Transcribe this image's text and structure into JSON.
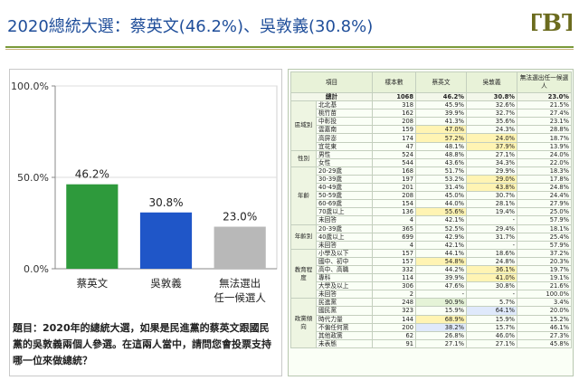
{
  "page": {
    "title": "2020總統大選：蔡英文(46.2%)、吳敦義(30.8%)",
    "logo_text": "TBT"
  },
  "colors": {
    "green": "#2e9a3c",
    "blue": "#1f56c8",
    "grey": "#b8b8b8",
    "title": "#1f4e9a"
  },
  "chart_data": {
    "type": "bar",
    "categories": [
      "蔡英文",
      "吳敦義",
      "無法選出\n任一候選人"
    ],
    "values": [
      46.2,
      30.8,
      23.0
    ],
    "value_labels": [
      "46.2%",
      "30.8%",
      "23.0%"
    ],
    "yticks": [
      "0.0%",
      "50.0%",
      "100.0%"
    ],
    "ylim": [
      0,
      100
    ],
    "colors": [
      "#2e9a3c",
      "#1f56c8",
      "#b8b8b8"
    ]
  },
  "note": "題目：2020年的總統大選，如果是民進黨的蔡英文跟國民黨的吳敦義兩個人參選。在這兩人當中，請問您會投票支持哪一位來做總統？",
  "table": {
    "headers": [
      "項目",
      "樣本數",
      "蔡英文",
      "吳敦義",
      "無法選出任一候選人"
    ],
    "total": {
      "label": "總計",
      "n": "1068",
      "a": "46.2%",
      "b": "30.8%",
      "c": "23.0%"
    },
    "groups": [
      {
        "name": "區域別",
        "rows": [
          {
            "label": "北北基",
            "n": "318",
            "a": "45.9%",
            "b": "32.6%",
            "c": "21.5%"
          },
          {
            "label": "桃竹苗",
            "n": "162",
            "a": "39.9%",
            "b": "32.7%",
            "c": "27.4%"
          },
          {
            "label": "中彰投",
            "n": "208",
            "a": "41.3%",
            "b": "35.6%",
            "c": "23.1%"
          },
          {
            "label": "雲嘉南",
            "n": "159",
            "a": "47.0%",
            "b": "24.3%",
            "c": "28.8%",
            "hl_a": "yellow"
          },
          {
            "label": "高屏澎",
            "n": "174",
            "a": "57.2%",
            "b": "24.0%",
            "c": "18.7%",
            "hl_a": "yellow",
            "hl_b": "yellow"
          },
          {
            "label": "宜花東",
            "n": "47",
            "a": "48.1%",
            "b": "37.9%",
            "c": "13.9%",
            "hl_b": "yellow"
          }
        ]
      },
      {
        "name": "性別",
        "rows": [
          {
            "label": "男性",
            "n": "524",
            "a": "48.8%",
            "b": "27.1%",
            "c": "24.0%"
          },
          {
            "label": "女性",
            "n": "544",
            "a": "43.6%",
            "b": "34.3%",
            "c": "22.0%"
          }
        ]
      },
      {
        "name": "年齡",
        "rows": [
          {
            "label": "20-29歲",
            "n": "168",
            "a": "51.7%",
            "b": "29.9%",
            "c": "18.3%"
          },
          {
            "label": "30-39歲",
            "n": "197",
            "a": "53.2%",
            "b": "29.0%",
            "c": "17.8%",
            "hl_b": "yellow"
          },
          {
            "label": "40-49歲",
            "n": "201",
            "a": "31.4%",
            "b": "43.8%",
            "c": "24.8%",
            "hl_b": "yellow"
          },
          {
            "label": "50-59歲",
            "n": "208",
            "a": "45.0%",
            "b": "30.7%",
            "c": "24.4%"
          },
          {
            "label": "60-69歲",
            "n": "154",
            "a": "44.0%",
            "b": "28.1%",
            "c": "27.9%"
          },
          {
            "label": "70歲以上",
            "n": "136",
            "a": "55.6%",
            "b": "19.4%",
            "c": "25.0%",
            "hl_a": "yellow"
          },
          {
            "label": "未回答",
            "n": "4",
            "a": "42.1%",
            "b": "-",
            "c": "57.9%"
          }
        ]
      },
      {
        "name": "年齡別",
        "rows": [
          {
            "label": "20-39歲",
            "n": "365",
            "a": "52.5%",
            "b": "29.4%",
            "c": "18.1%"
          },
          {
            "label": "40歲以上",
            "n": "699",
            "a": "42.9%",
            "b": "31.7%",
            "c": "25.4%"
          },
          {
            "label": "未回答",
            "n": "4",
            "a": "42.1%",
            "b": "-",
            "c": "57.9%"
          }
        ]
      },
      {
        "name": "教育程度",
        "rows": [
          {
            "label": "小學及以下",
            "n": "157",
            "a": "44.1%",
            "b": "18.6%",
            "c": "37.2%"
          },
          {
            "label": "國中、初中",
            "n": "157",
            "a": "54.8%",
            "b": "24.8%",
            "c": "20.3%",
            "hl_a": "yellow"
          },
          {
            "label": "高中、高職",
            "n": "332",
            "a": "44.2%",
            "b": "36.1%",
            "c": "19.7%",
            "hl_b": "yellow"
          },
          {
            "label": "專科",
            "n": "114",
            "a": "39.9%",
            "b": "41.0%",
            "c": "19.1%",
            "hl_b": "yellow"
          },
          {
            "label": "大學及以上",
            "n": "306",
            "a": "47.6%",
            "b": "30.8%",
            "c": "21.6%"
          },
          {
            "label": "未回答",
            "n": "2",
            "a": "-",
            "b": "-",
            "c": "100.0%"
          }
        ]
      },
      {
        "name": "政黨傾向",
        "rows": [
          {
            "label": "民進黨",
            "n": "248",
            "a": "90.9%",
            "b": "5.7%",
            "c": "3.4%",
            "hl_a": "green"
          },
          {
            "label": "國民黨",
            "n": "323",
            "a": "15.9%",
            "b": "64.1%",
            "c": "20.0%",
            "hl_b": "blue"
          },
          {
            "label": "時代力量",
            "n": "144",
            "a": "68.9%",
            "b": "15.9%",
            "c": "15.2%",
            "hl_a": "yellow"
          },
          {
            "label": "不偏任何黨",
            "n": "200",
            "a": "38.2%",
            "b": "15.7%",
            "c": "46.1%",
            "hl_a": "blue"
          },
          {
            "label": "其他政黨",
            "n": "62",
            "a": "26.8%",
            "b": "46.0%",
            "c": "27.3%"
          },
          {
            "label": "未表態",
            "n": "91",
            "a": "27.1%",
            "b": "27.1%",
            "c": "45.8%"
          }
        ]
      }
    ]
  }
}
